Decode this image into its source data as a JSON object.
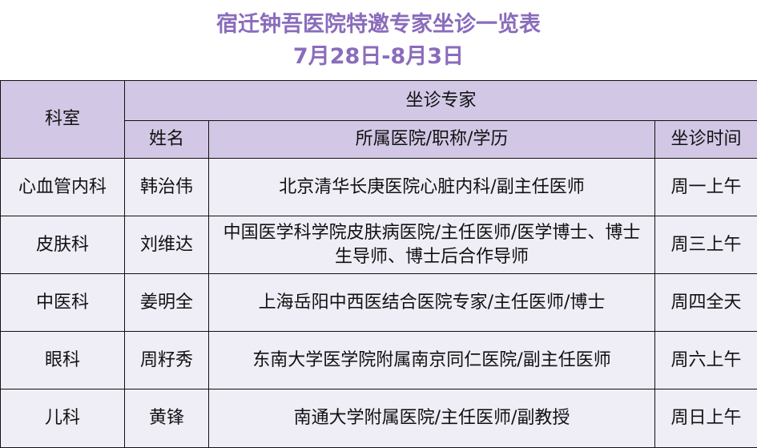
{
  "title": "宿迁钟吾医院特邀专家坐诊一览表",
  "subtitle": "7月28日-8月3日",
  "colors": {
    "title": "#8a6cbc",
    "header_bg": "#d2c8e6",
    "row_bg": "#efedf6"
  },
  "header": {
    "department": "科室",
    "experts_group": "坐诊专家",
    "name": "姓名",
    "affiliation": "所属医院/职称/学历",
    "time": "坐诊时间"
  },
  "rows": [
    {
      "department": "心血管内科",
      "name": "韩治伟",
      "affiliation": "北京清华长庚医院心脏内科/副主任医师",
      "time": "周一上午"
    },
    {
      "department": "皮肤科",
      "name": "刘维达",
      "affiliation": "中国医学科学院皮肤病医院/主任医师/医学博士、博士生导师、博士后合作导师",
      "time": "周三上午"
    },
    {
      "department": "中医科",
      "name": "姜明全",
      "affiliation": "上海岳阳中西医结合医院专家/主任医师/博士",
      "time": "周四全天"
    },
    {
      "department": "眼科",
      "name": "周籽秀",
      "affiliation": "东南大学医学院附属南京同仁医院/副主任医师",
      "time": "周六上午"
    },
    {
      "department": "儿科",
      "name": "黄锋",
      "affiliation": "南通大学附属医院/主任医师/副教授",
      "time": "周日上午"
    }
  ]
}
